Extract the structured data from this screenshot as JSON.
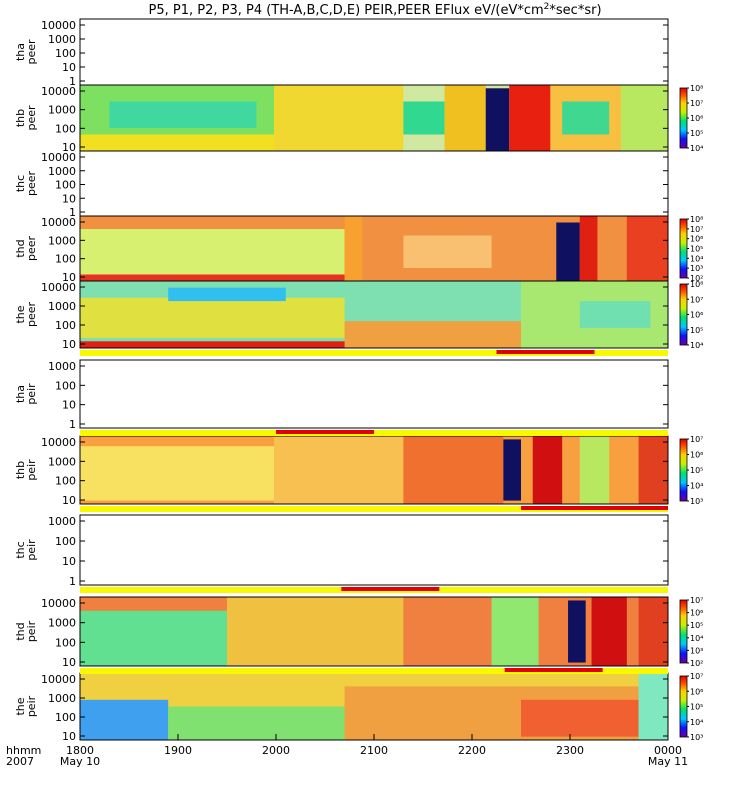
{
  "title_main": "P5, P1, P2, P3, P4 (TH-A,B,C,D,E) PEIR,PEER EFlux eV/(eV*cm",
  "title_sup": "2",
  "title_end": "*sec*sr)",
  "x_axis_label": [
    "hhmm",
    "2007"
  ],
  "x_ticks": [
    "1800",
    "1900",
    "2000",
    "2100",
    "2200",
    "2300",
    "0000"
  ],
  "x_subticks": {
    "first": "May 10",
    "last": "May 11"
  },
  "chart_data": {
    "type": "heatmap",
    "x_range": [
      "2007-05-10 18:00",
      "2007-05-11 00:00"
    ],
    "y_scale": "log",
    "y_unit": "eV",
    "panels": [
      {
        "name": [
          "tha",
          "peer"
        ],
        "has_data": false,
        "yticks": [
          "1",
          "10",
          "100",
          "1000",
          "10000"
        ]
      },
      {
        "name": [
          "thb",
          "peer"
        ],
        "has_data": true,
        "yticks": [
          "10",
          "100",
          "1000",
          "10000"
        ],
        "colorbar": [
          "10⁴",
          "10⁵",
          "10⁶",
          "10⁷",
          "10⁸"
        ],
        "colorbar_range": [
          4,
          8
        ]
      },
      {
        "name": [
          "thc",
          "peer"
        ],
        "has_data": false,
        "yticks": [
          "1",
          "10",
          "100",
          "1000",
          "10000"
        ]
      },
      {
        "name": [
          "thd",
          "peer"
        ],
        "has_data": true,
        "yticks": [
          "10",
          "100",
          "1000",
          "10000"
        ],
        "colorbar": [
          "10²",
          "10³",
          "10⁴",
          "10⁵",
          "10⁶",
          "10⁷",
          "10⁸"
        ],
        "colorbar_range": [
          2,
          8
        ]
      },
      {
        "name": [
          "the",
          "peer"
        ],
        "has_data": true,
        "yticks": [
          "10",
          "100",
          "1000",
          "10000"
        ],
        "colorbar": [
          "10⁴",
          "10⁵",
          "10⁶",
          "10⁷",
          "10⁸"
        ],
        "colorbar_range": [
          4,
          8
        ]
      },
      {
        "name": [
          "tha",
          "peir"
        ],
        "has_data": false,
        "yticks": [
          "1",
          "10",
          "100",
          "1000"
        ]
      },
      {
        "name": [
          "thb",
          "peir"
        ],
        "has_data": true,
        "yticks": [
          "10",
          "100",
          "1000",
          "10000"
        ],
        "colorbar": [
          "10³",
          "10⁴",
          "10⁵",
          "10⁶",
          "10⁷"
        ],
        "colorbar_range": [
          3,
          7
        ]
      },
      {
        "name": [
          "thc",
          "peir"
        ],
        "has_data": false,
        "yticks": [
          "1",
          "10",
          "100",
          "1000"
        ]
      },
      {
        "name": [
          "thd",
          "peir"
        ],
        "has_data": true,
        "yticks": [
          "10",
          "100",
          "1000",
          "10000"
        ],
        "colorbar": [
          "10²",
          "10³",
          "10⁴",
          "10⁵",
          "10⁶",
          "10⁷"
        ],
        "colorbar_range": [
          2,
          7
        ]
      },
      {
        "name": [
          "the",
          "peir"
        ],
        "has_data": true,
        "yticks": [
          "10",
          "100",
          "1000",
          "10000"
        ],
        "colorbar": [
          "10³",
          "10⁴",
          "10⁵",
          "10⁶",
          "10⁷"
        ],
        "colorbar_range": [
          3,
          7
        ]
      }
    ],
    "mode_bars": [
      {
        "after_panel": 4,
        "red_from": "22:15",
        "red_to": "23:15"
      },
      {
        "after_panel": 5,
        "red_from": "20:00",
        "red_to": "21:00"
      },
      {
        "after_panel": 6,
        "red_from": "22:30",
        "red_to": "00:00"
      },
      {
        "after_panel": 7,
        "red_from": "20:40",
        "red_to": "21:40"
      },
      {
        "after_panel": 8,
        "red_from": "22:20",
        "red_to": "23:20"
      }
    ]
  }
}
